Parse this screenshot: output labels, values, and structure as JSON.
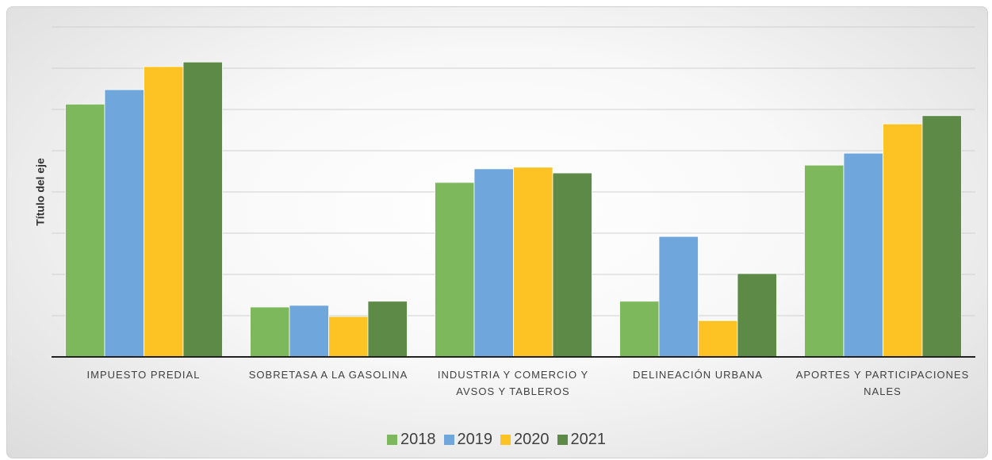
{
  "chart_data": {
    "type": "bar",
    "y_label": "Título del eje",
    "categories": [
      "IMPUESTO PREDIAL",
      "SOBRETASA A LA GASOLINA",
      "INDUSTRIA Y COMERCIO Y AVSOS Y TABLEROS",
      "DELINEACIÓN URBANA",
      "APORTES Y PARTICIPACIONES NALES"
    ],
    "series": [
      {
        "name": "2018",
        "color": "#7db85c",
        "values": [
          6.13,
          1.21,
          4.23,
          1.35,
          4.65
        ]
      },
      {
        "name": "2019",
        "color": "#6fa6db",
        "values": [
          6.48,
          1.25,
          4.56,
          2.92,
          4.94
        ]
      },
      {
        "name": "2020",
        "color": "#fdc324",
        "values": [
          7.04,
          0.98,
          4.6,
          0.88,
          5.65
        ]
      },
      {
        "name": "2021",
        "color": "#5d8a47",
        "values": [
          7.15,
          1.35,
          4.46,
          2.02,
          5.85
        ]
      }
    ],
    "ylim": [
      0,
      8
    ],
    "yticks": [
      0,
      1,
      2,
      3,
      4,
      5,
      6,
      7,
      8
    ],
    "grid": true,
    "legend": "bottom"
  }
}
